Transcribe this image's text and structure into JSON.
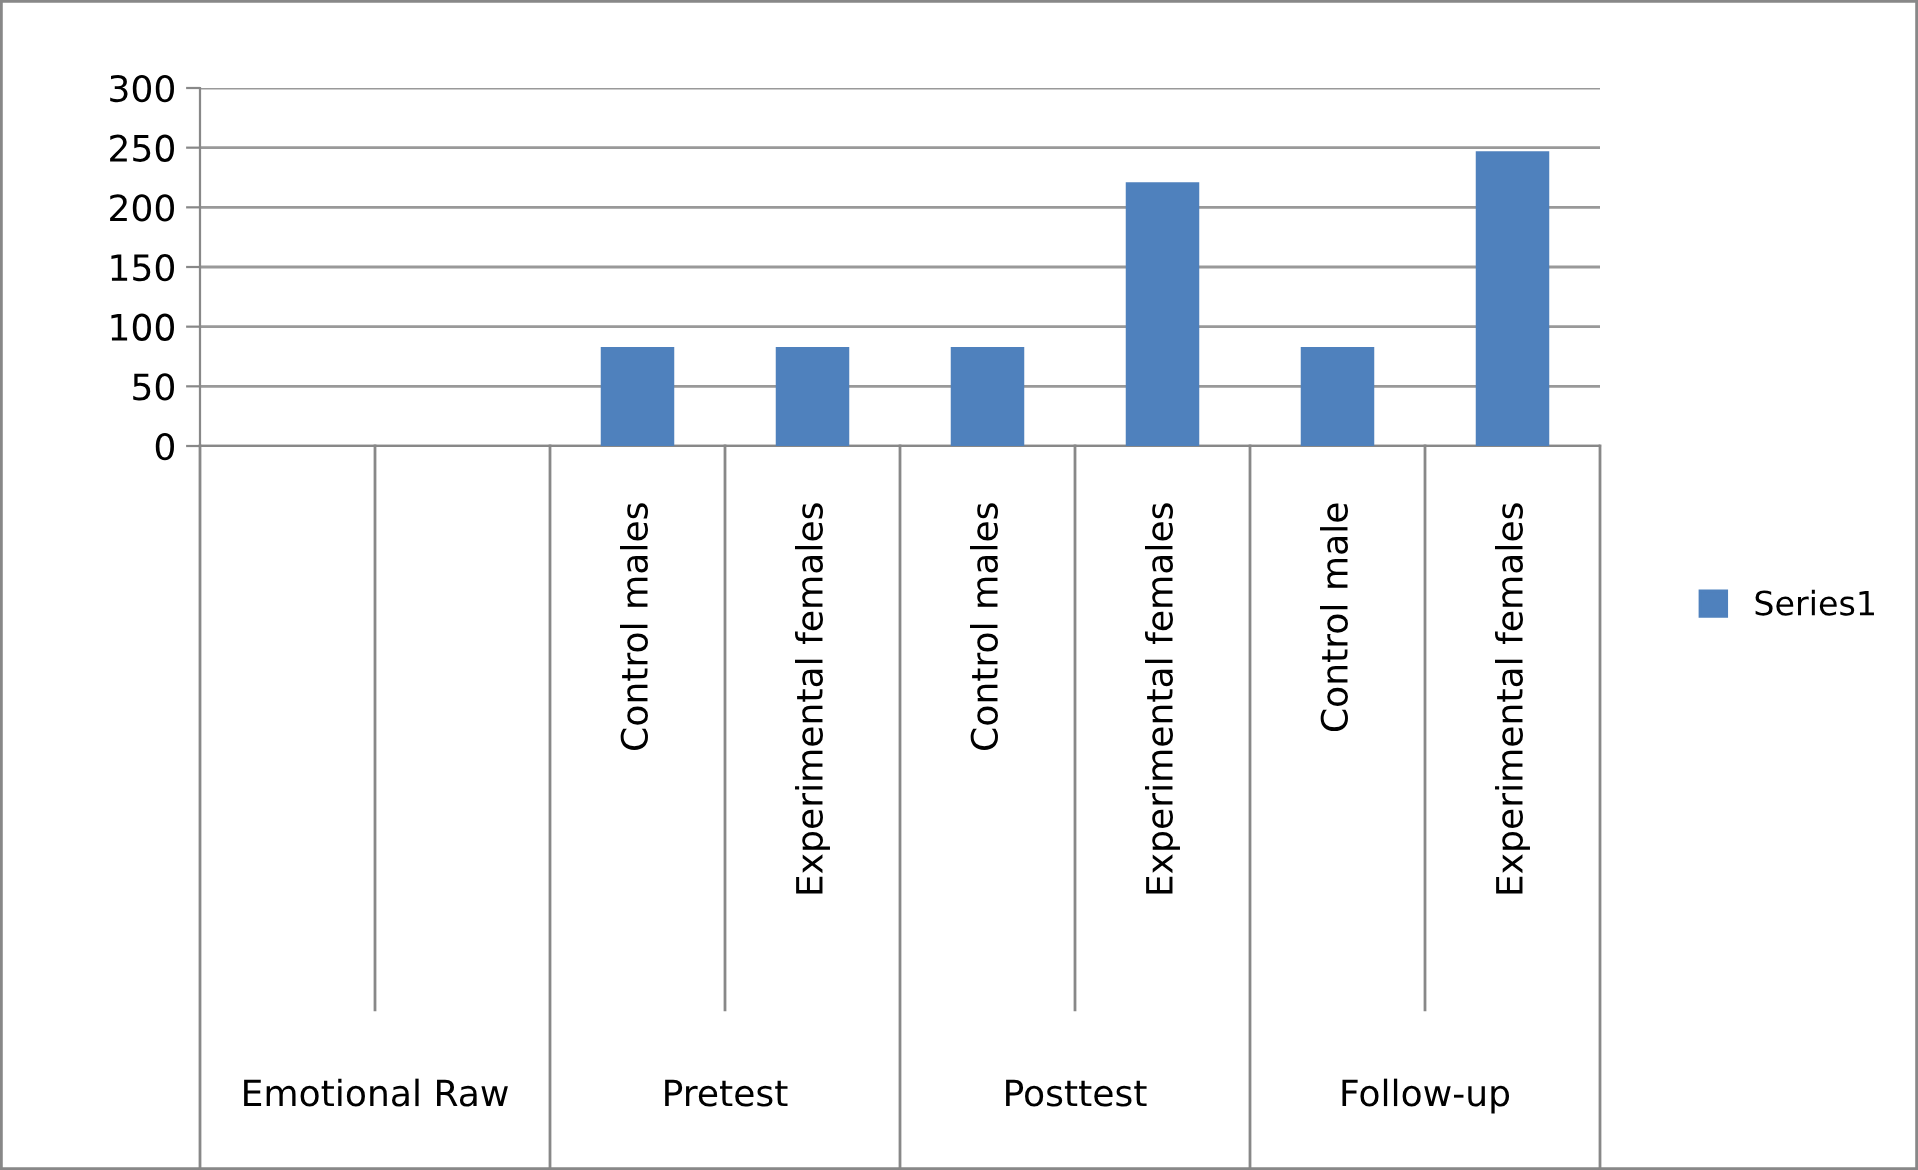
{
  "chart_data": {
    "type": "bar",
    "categories": [
      null,
      null,
      "Control males",
      "Experimental females",
      "Control males",
      "Experimental females",
      "Control male",
      "Experimental females"
    ],
    "series": [
      {
        "name": "Series1",
        "color": "#4f81bd",
        "values": [
          0,
          0,
          83,
          83,
          83,
          221,
          83,
          247
        ]
      }
    ],
    "annotations": [
      "Emotional Raw",
      "Pretest",
      "Posttest",
      "Follow-up"
    ],
    "ylim": [
      0,
      300
    ],
    "yticks": [
      0,
      50,
      100,
      150,
      200,
      250,
      300
    ],
    "grid": "y",
    "legend": "right"
  }
}
